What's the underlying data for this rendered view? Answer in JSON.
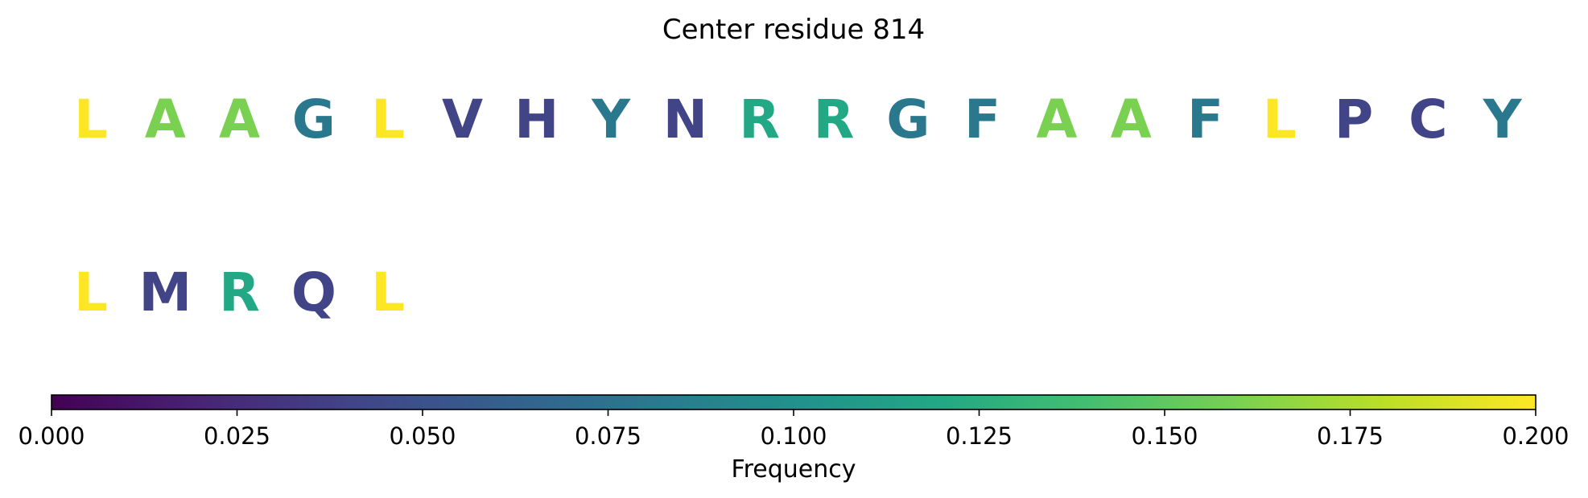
{
  "chart_data": {
    "type": "heatmap",
    "title": "Center residue 814",
    "rows": [
      {
        "residues": [
          {
            "letter": "L",
            "frequency": 0.2
          },
          {
            "letter": "A",
            "frequency": 0.16
          },
          {
            "letter": "A",
            "frequency": 0.16
          },
          {
            "letter": "G",
            "frequency": 0.08
          },
          {
            "letter": "L",
            "frequency": 0.2
          },
          {
            "letter": "V",
            "frequency": 0.04
          },
          {
            "letter": "H",
            "frequency": 0.04
          },
          {
            "letter": "Y",
            "frequency": 0.08
          },
          {
            "letter": "N",
            "frequency": 0.04
          },
          {
            "letter": "R",
            "frequency": 0.12
          },
          {
            "letter": "R",
            "frequency": 0.12
          },
          {
            "letter": "G",
            "frequency": 0.08
          },
          {
            "letter": "F",
            "frequency": 0.08
          },
          {
            "letter": "A",
            "frequency": 0.16
          },
          {
            "letter": "A",
            "frequency": 0.16
          },
          {
            "letter": "F",
            "frequency": 0.08
          },
          {
            "letter": "L",
            "frequency": 0.2
          },
          {
            "letter": "P",
            "frequency": 0.04
          },
          {
            "letter": "C",
            "frequency": 0.04
          },
          {
            "letter": "Y",
            "frequency": 0.08
          }
        ]
      },
      {
        "residues": [
          {
            "letter": "L",
            "frequency": 0.2
          },
          {
            "letter": "M",
            "frequency": 0.04
          },
          {
            "letter": "R",
            "frequency": 0.12
          },
          {
            "letter": "Q",
            "frequency": 0.04
          },
          {
            "letter": "L",
            "frequency": 0.2
          }
        ]
      }
    ],
    "colorbar": {
      "colormap": "viridis",
      "range": [
        0,
        0.2
      ],
      "ticks": [
        0,
        0.025,
        0.05,
        0.075,
        0.1,
        0.125,
        0.15,
        0.175,
        0.2
      ],
      "tick_labels": [
        "0.000",
        "0.025",
        "0.050",
        "0.075",
        "0.100",
        "0.125",
        "0.150",
        "0.175",
        "0.200"
      ],
      "label": "Frequency",
      "orientation": "horizontal",
      "placement": "bottom"
    },
    "grid": false
  }
}
